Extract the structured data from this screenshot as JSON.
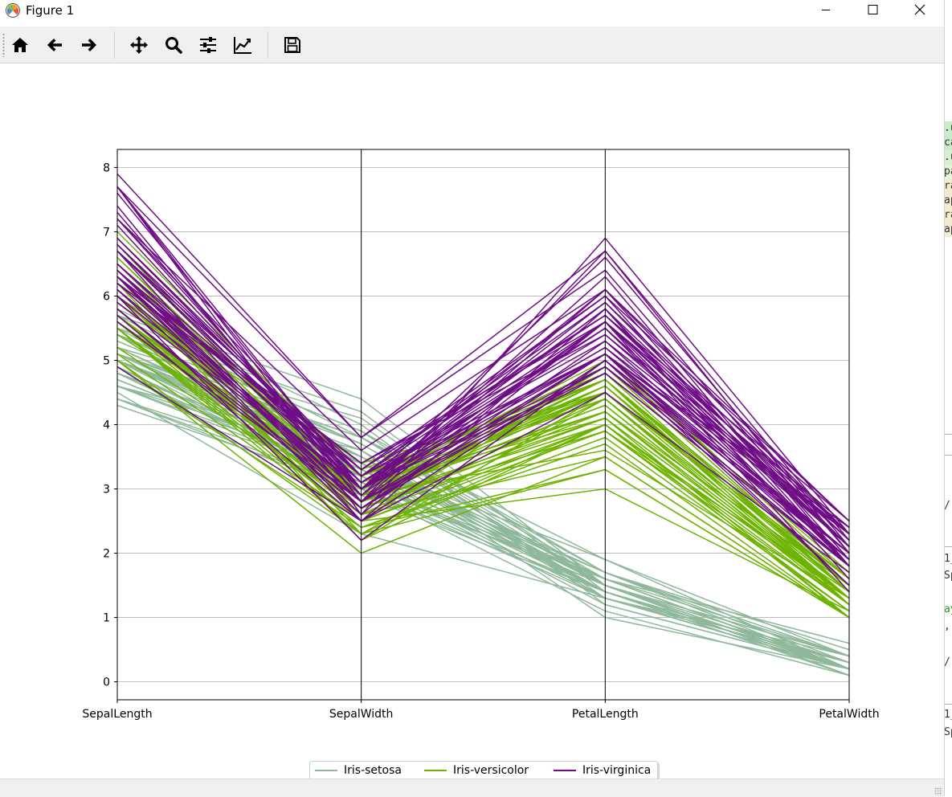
{
  "window": {
    "title": "Figure 1"
  },
  "toolbar": {
    "buttons": [
      {
        "name": "home-icon",
        "label": "Home"
      },
      {
        "name": "back-icon",
        "label": "Back"
      },
      {
        "name": "forward-icon",
        "label": "Forward"
      },
      {
        "name": "pan-icon",
        "label": "Pan"
      },
      {
        "name": "zoom-icon",
        "label": "Zoom"
      },
      {
        "name": "subplots-icon",
        "label": "Subplots"
      },
      {
        "name": "customize-icon",
        "label": "Customize"
      },
      {
        "name": "save-icon",
        "label": "Save"
      }
    ]
  },
  "colors": {
    "setosa": "#8fb89a",
    "versicolor": "#6db300",
    "virginica": "#6f0d86",
    "grid": "#b0b0b0",
    "axis": "#000000"
  },
  "chart_data": {
    "type": "parallel_coordinates",
    "dimensions": [
      "SepalLength",
      "SepalWidth",
      "PetalLength",
      "PetalWidth"
    ],
    "yticks": [
      "0",
      "1",
      "2",
      "3",
      "4",
      "5",
      "6",
      "7",
      "8"
    ],
    "ylim": [
      -0.28,
      8.28
    ],
    "grid": true,
    "legend_position": "bottom-center",
    "series": [
      {
        "name": "Iris-setosa",
        "color_key": "setosa",
        "rows": [
          [
            5.1,
            3.5,
            1.4,
            0.2
          ],
          [
            4.9,
            3.0,
            1.4,
            0.2
          ],
          [
            4.7,
            3.2,
            1.3,
            0.2
          ],
          [
            4.6,
            3.1,
            1.5,
            0.2
          ],
          [
            5.0,
            3.6,
            1.4,
            0.2
          ],
          [
            5.4,
            3.9,
            1.7,
            0.4
          ],
          [
            4.6,
            3.4,
            1.4,
            0.3
          ],
          [
            5.0,
            3.4,
            1.5,
            0.2
          ],
          [
            4.4,
            2.9,
            1.4,
            0.2
          ],
          [
            4.9,
            3.1,
            1.5,
            0.1
          ],
          [
            5.4,
            3.7,
            1.5,
            0.2
          ],
          [
            4.8,
            3.4,
            1.6,
            0.2
          ],
          [
            4.8,
            3.0,
            1.4,
            0.1
          ],
          [
            4.3,
            3.0,
            1.1,
            0.1
          ],
          [
            5.8,
            4.0,
            1.2,
            0.2
          ],
          [
            5.7,
            4.4,
            1.5,
            0.4
          ],
          [
            5.4,
            3.9,
            1.3,
            0.4
          ],
          [
            5.1,
            3.5,
            1.4,
            0.3
          ],
          [
            5.7,
            3.8,
            1.7,
            0.3
          ],
          [
            5.1,
            3.8,
            1.5,
            0.3
          ],
          [
            5.4,
            3.4,
            1.7,
            0.2
          ],
          [
            5.1,
            3.7,
            1.5,
            0.4
          ],
          [
            4.6,
            3.6,
            1.0,
            0.2
          ],
          [
            5.1,
            3.3,
            1.7,
            0.5
          ],
          [
            4.8,
            3.4,
            1.9,
            0.2
          ],
          [
            5.0,
            3.0,
            1.6,
            0.2
          ],
          [
            5.0,
            3.4,
            1.6,
            0.4
          ],
          [
            5.2,
            3.5,
            1.5,
            0.2
          ],
          [
            5.2,
            3.4,
            1.4,
            0.2
          ],
          [
            4.7,
            3.2,
            1.6,
            0.2
          ],
          [
            4.8,
            3.1,
            1.6,
            0.2
          ],
          [
            5.4,
            3.4,
            1.5,
            0.4
          ],
          [
            5.2,
            4.1,
            1.5,
            0.1
          ],
          [
            5.5,
            4.2,
            1.4,
            0.2
          ],
          [
            4.9,
            3.1,
            1.5,
            0.1
          ],
          [
            5.0,
            3.2,
            1.2,
            0.2
          ],
          [
            5.5,
            3.5,
            1.3,
            0.2
          ],
          [
            4.9,
            3.1,
            1.5,
            0.1
          ],
          [
            4.4,
            3.0,
            1.3,
            0.2
          ],
          [
            5.1,
            3.4,
            1.5,
            0.2
          ],
          [
            5.0,
            3.5,
            1.3,
            0.3
          ],
          [
            4.5,
            2.3,
            1.3,
            0.3
          ],
          [
            4.4,
            3.2,
            1.3,
            0.2
          ],
          [
            5.0,
            3.5,
            1.6,
            0.6
          ],
          [
            5.1,
            3.8,
            1.9,
            0.4
          ],
          [
            4.8,
            3.0,
            1.4,
            0.3
          ],
          [
            5.1,
            3.8,
            1.6,
            0.2
          ],
          [
            4.6,
            3.2,
            1.4,
            0.2
          ],
          [
            5.3,
            3.7,
            1.5,
            0.2
          ],
          [
            5.0,
            3.3,
            1.4,
            0.2
          ]
        ]
      },
      {
        "name": "Iris-versicolor",
        "color_key": "versicolor",
        "rows": [
          [
            7.0,
            3.2,
            4.7,
            1.4
          ],
          [
            6.4,
            3.2,
            4.5,
            1.5
          ],
          [
            6.9,
            3.1,
            4.9,
            1.5
          ],
          [
            5.5,
            2.3,
            4.0,
            1.3
          ],
          [
            6.5,
            2.8,
            4.6,
            1.5
          ],
          [
            5.7,
            2.8,
            4.5,
            1.3
          ],
          [
            6.3,
            3.3,
            4.7,
            1.6
          ],
          [
            4.9,
            2.4,
            3.3,
            1.0
          ],
          [
            6.6,
            2.9,
            4.6,
            1.3
          ],
          [
            5.2,
            2.7,
            3.9,
            1.4
          ],
          [
            5.0,
            2.0,
            3.5,
            1.0
          ],
          [
            5.9,
            3.0,
            4.2,
            1.5
          ],
          [
            6.0,
            2.2,
            4.0,
            1.0
          ],
          [
            6.1,
            2.9,
            4.7,
            1.4
          ],
          [
            5.6,
            2.9,
            3.6,
            1.3
          ],
          [
            6.7,
            3.1,
            4.4,
            1.4
          ],
          [
            5.6,
            3.0,
            4.5,
            1.5
          ],
          [
            5.8,
            2.7,
            4.1,
            1.0
          ],
          [
            6.2,
            2.2,
            4.5,
            1.5
          ],
          [
            5.6,
            2.5,
            3.9,
            1.1
          ],
          [
            5.9,
            3.2,
            4.8,
            1.8
          ],
          [
            6.1,
            2.8,
            4.0,
            1.3
          ],
          [
            6.3,
            2.5,
            4.9,
            1.5
          ],
          [
            6.1,
            2.8,
            4.7,
            1.2
          ],
          [
            6.4,
            2.9,
            4.3,
            1.3
          ],
          [
            6.6,
            3.0,
            4.4,
            1.4
          ],
          [
            6.8,
            2.8,
            4.8,
            1.4
          ],
          [
            6.7,
            3.0,
            5.0,
            1.7
          ],
          [
            6.0,
            2.9,
            4.5,
            1.5
          ],
          [
            5.7,
            2.6,
            3.5,
            1.0
          ],
          [
            5.5,
            2.4,
            3.8,
            1.1
          ],
          [
            5.5,
            2.4,
            3.7,
            1.0
          ],
          [
            5.8,
            2.7,
            3.9,
            1.2
          ],
          [
            6.0,
            2.7,
            5.1,
            1.6
          ],
          [
            5.4,
            3.0,
            4.5,
            1.5
          ],
          [
            6.0,
            3.4,
            4.5,
            1.6
          ],
          [
            6.7,
            3.1,
            4.7,
            1.5
          ],
          [
            6.3,
            2.3,
            4.4,
            1.3
          ],
          [
            5.6,
            3.0,
            4.1,
            1.3
          ],
          [
            5.5,
            2.5,
            4.0,
            1.3
          ],
          [
            5.5,
            2.6,
            4.4,
            1.2
          ],
          [
            6.1,
            3.0,
            4.6,
            1.4
          ],
          [
            5.8,
            2.6,
            4.0,
            1.2
          ],
          [
            5.0,
            2.3,
            3.3,
            1.0
          ],
          [
            5.6,
            2.7,
            4.2,
            1.3
          ],
          [
            5.7,
            3.0,
            4.2,
            1.2
          ],
          [
            5.7,
            2.9,
            4.2,
            1.3
          ],
          [
            6.2,
            2.9,
            4.3,
            1.3
          ],
          [
            5.1,
            2.5,
            3.0,
            1.1
          ],
          [
            5.7,
            2.8,
            4.1,
            1.3
          ]
        ]
      },
      {
        "name": "Iris-virginica",
        "color_key": "virginica",
        "rows": [
          [
            6.3,
            3.3,
            6.0,
            2.5
          ],
          [
            5.8,
            2.7,
            5.1,
            1.9
          ],
          [
            7.1,
            3.0,
            5.9,
            2.1
          ],
          [
            6.3,
            2.9,
            5.6,
            1.8
          ],
          [
            6.5,
            3.0,
            5.8,
            2.2
          ],
          [
            7.6,
            3.0,
            6.6,
            2.1
          ],
          [
            4.9,
            2.5,
            4.5,
            1.7
          ],
          [
            7.3,
            2.9,
            6.3,
            1.8
          ],
          [
            6.7,
            2.5,
            5.8,
            1.8
          ],
          [
            7.2,
            3.6,
            6.1,
            2.5
          ],
          [
            6.5,
            3.2,
            5.1,
            2.0
          ],
          [
            6.4,
            2.7,
            5.3,
            1.9
          ],
          [
            6.8,
            3.0,
            5.5,
            2.1
          ],
          [
            5.7,
            2.5,
            5.0,
            2.0
          ],
          [
            5.8,
            2.8,
            5.1,
            2.4
          ],
          [
            6.4,
            3.2,
            5.3,
            2.3
          ],
          [
            6.5,
            3.0,
            5.5,
            1.8
          ],
          [
            7.7,
            3.8,
            6.7,
            2.2
          ],
          [
            7.7,
            2.6,
            6.9,
            2.3
          ],
          [
            6.0,
            2.2,
            5.0,
            1.5
          ],
          [
            6.9,
            3.2,
            5.7,
            2.3
          ],
          [
            5.6,
            2.8,
            4.9,
            2.0
          ],
          [
            7.7,
            2.8,
            6.7,
            2.0
          ],
          [
            6.3,
            2.7,
            4.9,
            1.8
          ],
          [
            6.7,
            3.3,
            5.7,
            2.1
          ],
          [
            7.2,
            3.2,
            6.0,
            1.8
          ],
          [
            6.2,
            2.8,
            4.8,
            1.8
          ],
          [
            6.1,
            3.0,
            4.9,
            1.8
          ],
          [
            6.4,
            2.8,
            5.6,
            2.1
          ],
          [
            7.2,
            3.0,
            5.8,
            1.6
          ],
          [
            7.4,
            2.8,
            6.1,
            1.9
          ],
          [
            7.9,
            3.8,
            6.4,
            2.0
          ],
          [
            6.4,
            2.8,
            5.6,
            2.2
          ],
          [
            6.3,
            2.8,
            5.1,
            1.5
          ],
          [
            6.1,
            2.6,
            5.6,
            1.4
          ],
          [
            7.7,
            3.0,
            6.1,
            2.3
          ],
          [
            6.3,
            3.4,
            5.6,
            2.4
          ],
          [
            6.4,
            3.1,
            5.5,
            1.8
          ],
          [
            6.0,
            3.0,
            4.8,
            1.8
          ],
          [
            6.9,
            3.1,
            5.4,
            2.1
          ],
          [
            6.7,
            3.1,
            5.6,
            2.4
          ],
          [
            6.9,
            3.1,
            5.1,
            2.3
          ],
          [
            5.8,
            2.7,
            5.1,
            1.9
          ],
          [
            6.8,
            3.2,
            5.9,
            2.3
          ],
          [
            6.7,
            3.3,
            5.7,
            2.5
          ],
          [
            6.7,
            3.0,
            5.2,
            2.3
          ],
          [
            6.3,
            2.5,
            5.0,
            1.9
          ],
          [
            6.5,
            3.0,
            5.2,
            2.0
          ],
          [
            6.2,
            3.4,
            5.4,
            2.3
          ],
          [
            5.9,
            3.0,
            5.1,
            1.8
          ]
        ]
      }
    ]
  },
  "side_panel": {
    "fragments": [
      ".u",
      "ca",
      ".u",
      "pa",
      "ra",
      "ap",
      "ra",
      "ap",
      "/",
      "1_",
      "Sp",
      "ay",
      ",",
      "/",
      "1_",
      "Sp"
    ]
  }
}
